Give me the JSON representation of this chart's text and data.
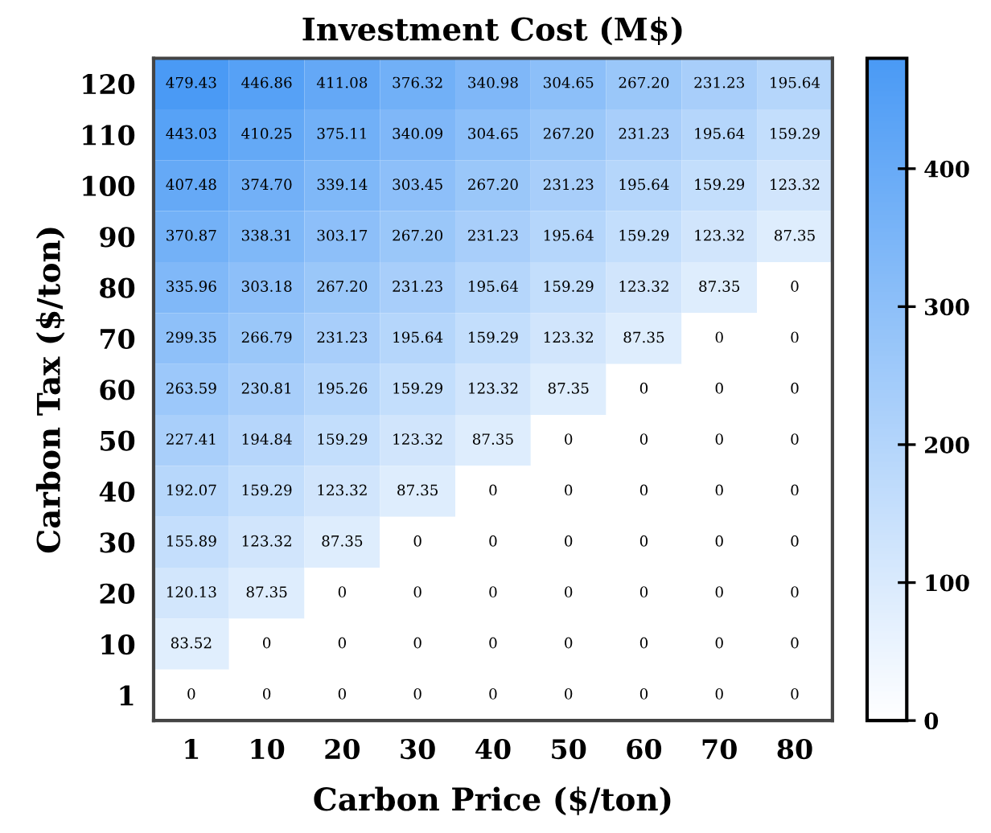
{
  "chart_data": {
    "type": "heatmap",
    "title": "Investment Cost (M$)",
    "xlabel": "Carbon Price ($/ton)",
    "ylabel": "Carbon Tax ($/ton)",
    "categories": [
      "1",
      "10",
      "20",
      "30",
      "40",
      "50",
      "60",
      "70",
      "80"
    ],
    "y_categories": [
      "120",
      "110",
      "100",
      "90",
      "80",
      "70",
      "60",
      "50",
      "40",
      "30",
      "20",
      "10",
      "1"
    ],
    "cells": [
      [
        479.43,
        446.86,
        411.08,
        376.32,
        340.98,
        304.65,
        267.2,
        231.23,
        195.64
      ],
      [
        443.03,
        410.25,
        375.11,
        340.09,
        304.65,
        267.2,
        231.23,
        195.64,
        159.29
      ],
      [
        407.48,
        374.7,
        339.14,
        303.45,
        267.2,
        231.23,
        195.64,
        159.29,
        123.32
      ],
      [
        370.87,
        338.31,
        303.17,
        267.2,
        231.23,
        195.64,
        159.29,
        123.32,
        87.35
      ],
      [
        335.96,
        303.18,
        267.2,
        231.23,
        195.64,
        159.29,
        123.32,
        87.35,
        0
      ],
      [
        299.35,
        266.79,
        231.23,
        195.64,
        159.29,
        123.32,
        87.35,
        0,
        0
      ],
      [
        263.59,
        230.81,
        195.26,
        159.29,
        123.32,
        87.35,
        0,
        0,
        0
      ],
      [
        227.41,
        194.84,
        159.29,
        123.32,
        87.35,
        0,
        0,
        0,
        0
      ],
      [
        192.07,
        159.29,
        123.32,
        87.35,
        0,
        0,
        0,
        0,
        0
      ],
      [
        155.89,
        123.32,
        87.35,
        0,
        0,
        0,
        0,
        0,
        0
      ],
      [
        120.13,
        87.35,
        0,
        0,
        0,
        0,
        0,
        0,
        0
      ],
      [
        83.52,
        0,
        0,
        0,
        0,
        0,
        0,
        0,
        0
      ],
      [
        0,
        0,
        0,
        0,
        0,
        0,
        0,
        0,
        0
      ]
    ],
    "cell_labels": [
      [
        "479.43",
        "446.86",
        "411.08",
        "376.32",
        "340.98",
        "304.65",
        "267.20",
        "231.23",
        "195.64"
      ],
      [
        "443.03",
        "410.25",
        "375.11",
        "340.09",
        "304.65",
        "267.20",
        "231.23",
        "195.64",
        "159.29"
      ],
      [
        "407.48",
        "374.70",
        "339.14",
        "303.45",
        "267.20",
        "231.23",
        "195.64",
        "159.29",
        "123.32"
      ],
      [
        "370.87",
        "338.31",
        "303.17",
        "267.20",
        "231.23",
        "195.64",
        "159.29",
        "123.32",
        "87.35"
      ],
      [
        "335.96",
        "303.18",
        "267.20",
        "231.23",
        "195.64",
        "159.29",
        "123.32",
        "87.35",
        "0"
      ],
      [
        "299.35",
        "266.79",
        "231.23",
        "195.64",
        "159.29",
        "123.32",
        "87.35",
        "0",
        "0"
      ],
      [
        "263.59",
        "230.81",
        "195.26",
        "159.29",
        "123.32",
        "87.35",
        "0",
        "0",
        "0"
      ],
      [
        "227.41",
        "194.84",
        "159.29",
        "123.32",
        "87.35",
        "0",
        "0",
        "0",
        "0"
      ],
      [
        "192.07",
        "159.29",
        "123.32",
        "87.35",
        "0",
        "0",
        "0",
        "0",
        "0"
      ],
      [
        "155.89",
        "123.32",
        "87.35",
        "0",
        "0",
        "0",
        "0",
        "0",
        "0"
      ],
      [
        "120.13",
        "87.35",
        "0",
        "0",
        "0",
        "0",
        "0",
        "0",
        "0"
      ],
      [
        "83.52",
        "0",
        "0",
        "0",
        "0",
        "0",
        "0",
        "0",
        "0"
      ],
      [
        "0",
        "0",
        "0",
        "0",
        "0",
        "0",
        "0",
        "0",
        "0"
      ]
    ],
    "colors": [
      "#ffffff",
      "#4a9af5"
    ],
    "clim": [
      0,
      480
    ],
    "cticks": [
      0,
      100,
      200,
      300,
      400
    ]
  }
}
